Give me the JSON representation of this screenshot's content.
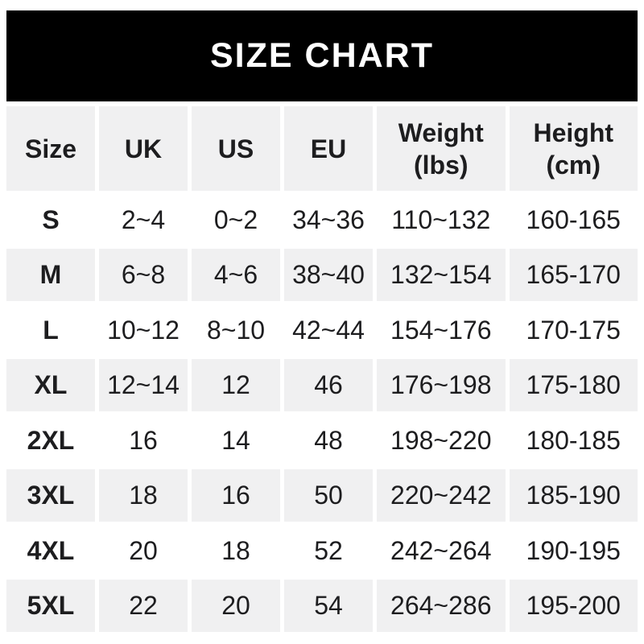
{
  "title": "SIZE CHART",
  "colors": {
    "banner_bg": "#000000",
    "banner_text": "#ffffff",
    "row_alt_bg": "#f0f0f1",
    "text": "#1d1d1f",
    "page_bg": "#ffffff"
  },
  "header_lines": [
    [
      "Size"
    ],
    [
      "UK"
    ],
    [
      "US"
    ],
    [
      "EU"
    ],
    [
      "Weight",
      "(lbs)"
    ],
    [
      "Height",
      "(cm)"
    ]
  ],
  "chart_data": {
    "type": "table",
    "title": "SIZE CHART",
    "columns": [
      "Size",
      "UK",
      "US",
      "EU",
      "Weight (lbs)",
      "Height (cm)"
    ],
    "rows": [
      [
        "S",
        "2~4",
        "0~2",
        "34~36",
        "110~132",
        "160-165"
      ],
      [
        "M",
        "6~8",
        "4~6",
        "38~40",
        "132~154",
        "165-170"
      ],
      [
        "L",
        "10~12",
        "8~10",
        "42~44",
        "154~176",
        "170-175"
      ],
      [
        "XL",
        "12~14",
        "12",
        "46",
        "176~198",
        "175-180"
      ],
      [
        "2XL",
        "16",
        "14",
        "48",
        "198~220",
        "180-185"
      ],
      [
        "3XL",
        "18",
        "16",
        "50",
        "220~242",
        "185-190"
      ],
      [
        "4XL",
        "20",
        "18",
        "52",
        "242~264",
        "190-195"
      ],
      [
        "5XL",
        "22",
        "20",
        "54",
        "264~286",
        "195-200"
      ]
    ],
    "layout": {
      "striping": "alternate rows shaded starting with header row",
      "range_separator_weight": "~",
      "range_separator_height": "-"
    }
  }
}
